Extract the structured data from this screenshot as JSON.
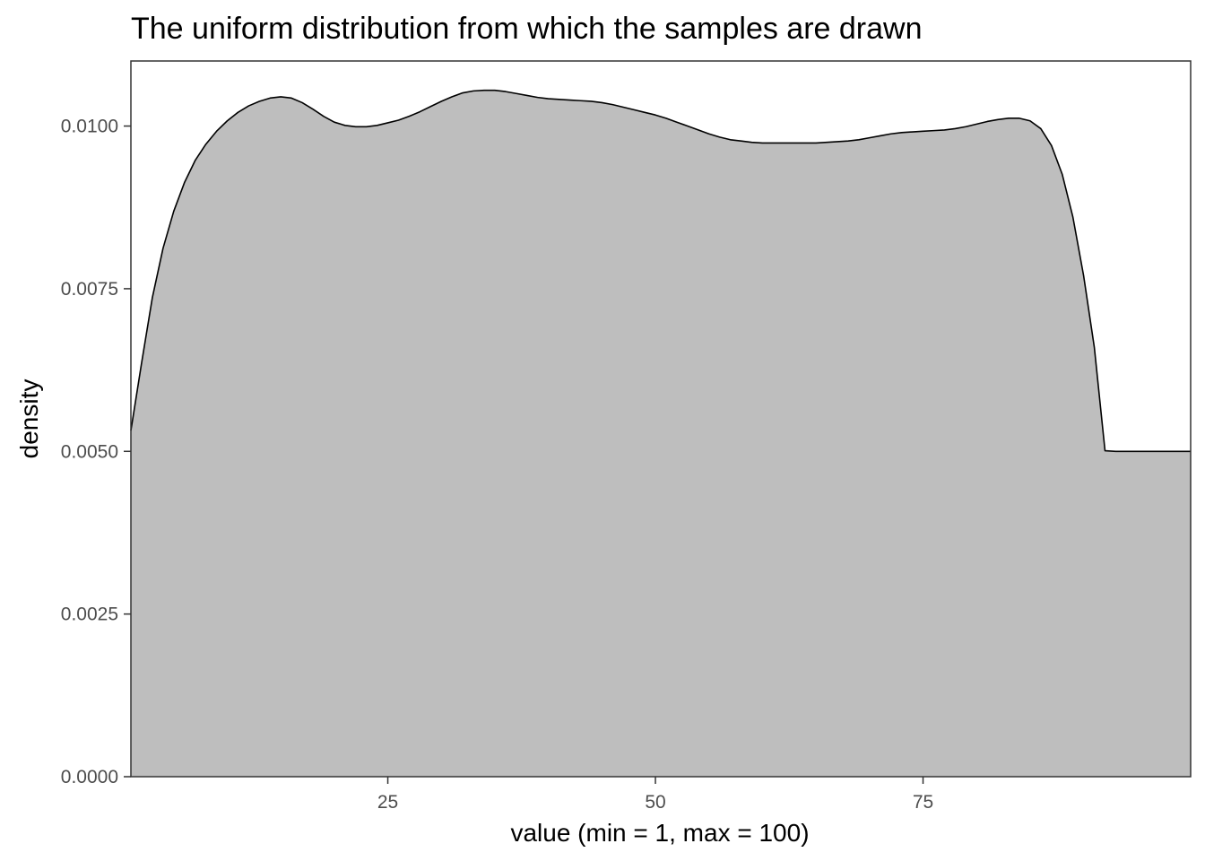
{
  "chart_data": {
    "type": "area",
    "title": "The uniform distribution from which the samples are drawn",
    "xlabel": "value (min = 1, max = 100)",
    "ylabel": "density",
    "xlim": [
      1,
      100
    ],
    "ylim": [
      0,
      0.011
    ],
    "x_ticks": [
      25,
      50,
      75
    ],
    "x_tick_labels": [
      "25",
      "50",
      "75"
    ],
    "y_ticks": [
      0,
      0.0025,
      0.005,
      0.0075,
      0.01
    ],
    "y_tick_labels": [
      "0.0000",
      "0.0025",
      "0.0050",
      "0.0075",
      "0.0100"
    ],
    "grid": false,
    "legend": "none",
    "fill_color": "#bebebe",
    "line_color": "#000000",
    "series": [
      {
        "x": [
          1,
          2,
          3,
          4,
          5,
          6,
          7,
          8,
          9,
          10,
          11,
          12,
          13,
          14,
          15,
          16,
          17,
          18,
          19,
          20,
          21,
          22,
          23,
          24,
          25,
          26,
          27,
          28,
          29,
          30,
          31,
          32,
          33,
          34,
          35,
          36,
          37,
          38,
          39,
          40,
          41,
          42,
          43,
          44,
          45,
          46,
          47,
          48,
          49,
          50,
          51,
          52,
          53,
          54,
          55,
          56,
          57,
          58,
          59,
          60,
          61,
          62,
          63,
          64,
          65,
          66,
          67,
          68,
          69,
          70,
          71,
          72,
          73,
          74,
          75,
          76,
          77,
          78,
          79,
          80,
          81,
          82,
          83,
          84,
          85,
          86,
          87,
          88,
          89,
          90,
          91,
          92,
          93,
          94,
          95,
          96,
          97,
          98,
          99,
          100
        ],
        "values": [
          0.00532,
          0.00636,
          0.00736,
          0.00812,
          0.00869,
          0.00913,
          0.00947,
          0.00972,
          0.00992,
          0.01008,
          0.01021,
          0.01031,
          0.01038,
          0.01043,
          0.01045,
          0.01043,
          0.01036,
          0.01026,
          0.01015,
          0.01006,
          0.01001,
          0.00999,
          0.00999,
          0.01001,
          0.01005,
          0.01009,
          0.01015,
          0.01022,
          0.0103,
          0.01038,
          0.01045,
          0.01051,
          0.01054,
          0.01055,
          0.01055,
          0.01053,
          0.0105,
          0.01047,
          0.01044,
          0.01042,
          0.01041,
          0.0104,
          0.01039,
          0.01038,
          0.01036,
          0.01033,
          0.01029,
          0.01025,
          0.01021,
          0.01017,
          0.01012,
          0.01006,
          0.01,
          0.00994,
          0.00988,
          0.00983,
          0.00979,
          0.00977,
          0.00975,
          0.00974,
          0.00974,
          0.00974,
          0.00974,
          0.00974,
          0.00974,
          0.00975,
          0.00976,
          0.00977,
          0.00979,
          0.00982,
          0.00985,
          0.00988,
          0.0099,
          0.00991,
          0.00992,
          0.00993,
          0.00994,
          0.00996,
          0.00999,
          0.01003,
          0.01007,
          0.0101,
          0.01012,
          0.01012,
          0.01008,
          0.00996,
          0.0097,
          0.00926,
          0.0086,
          0.0077,
          0.0066,
          0.00501,
          0.005,
          0.005,
          0.005,
          0.005,
          0.005,
          0.005,
          0.005,
          0.005
        ]
      }
    ]
  }
}
